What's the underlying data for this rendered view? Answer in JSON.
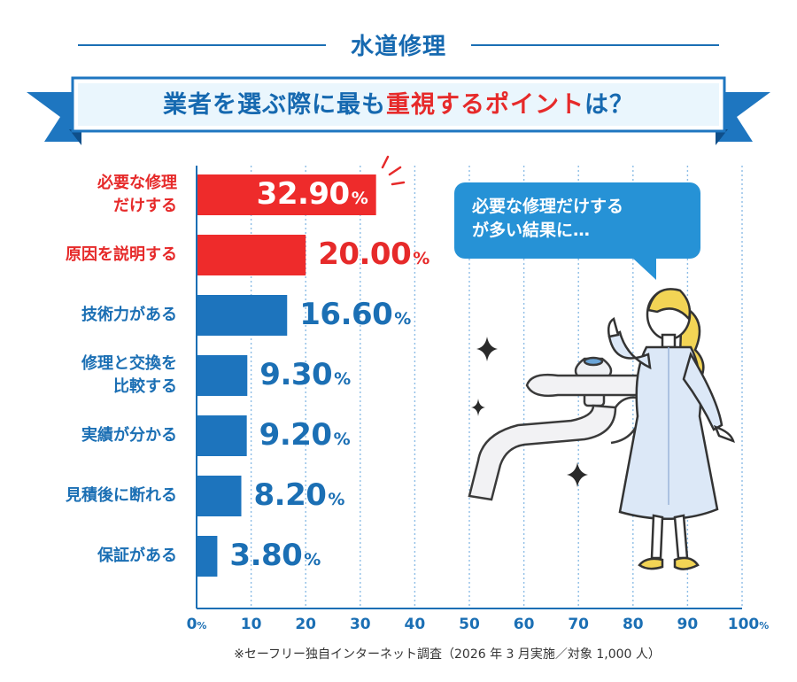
{
  "header": {
    "category": "水道修理",
    "title_before": "業者を選ぶ際に最も",
    "title_emphasis": "重視するポイント",
    "title_after": "は？"
  },
  "chart_data": {
    "type": "bar",
    "orientation": "horizontal",
    "categories": [
      "必要な修理だけする",
      "原因を説明する",
      "技術力がある",
      "修理と交換を比較する",
      "実績が分かる",
      "見積後に断れる",
      "保証がある"
    ],
    "category_lines": [
      [
        "必要な修理",
        "だけする"
      ],
      [
        "原因を説明する"
      ],
      [
        "技術力がある"
      ],
      [
        "修理と交換を",
        "比較する"
      ],
      [
        "実績が分かる"
      ],
      [
        "見積後に断れる"
      ],
      [
        "保証がある"
      ]
    ],
    "values": [
      32.9,
      20.0,
      16.6,
      9.3,
      9.2,
      8.2,
      3.8
    ],
    "value_labels": [
      "32.90",
      "20.00",
      "16.60",
      "9.30",
      "9.20",
      "8.20",
      "3.80"
    ],
    "value_unit": "%",
    "xlim": [
      0,
      100
    ],
    "xticks": [
      0,
      10,
      20,
      30,
      40,
      50,
      60,
      70,
      80,
      90,
      100
    ],
    "xtick_labels": [
      "0",
      "10",
      "20",
      "30",
      "40",
      "50",
      "60",
      "70",
      "80",
      "90",
      "100"
    ],
    "xtick_unit": "%",
    "grid": true,
    "highlight_color": "#ee2b2b",
    "bar_color": "#1d74bd",
    "highlight_count": 2
  },
  "speech_bubble": {
    "line1": "必要な修理だけする",
    "line2": "が多い結果に…"
  },
  "footnote": "※セーフリー独自インターネット調査（2026 年 3 月実施／対象 1,000 人）",
  "illustration": {
    "woman": "woman-pointing-icon",
    "faucet": "faucet-icon",
    "sparkles": "sparkle-icon"
  }
}
